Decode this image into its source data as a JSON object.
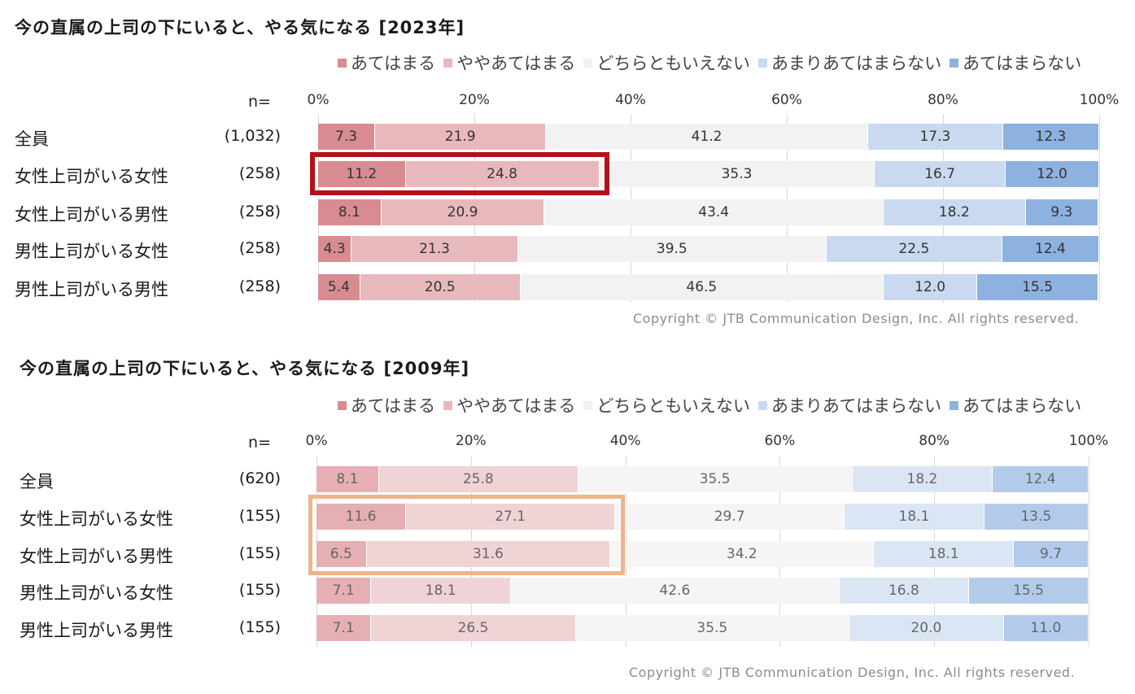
{
  "legend": {
    "categories": [
      "あてはまる",
      "ややあてはまる",
      "どちらともいえない",
      "あまりあてはまらない",
      "あてはまらない"
    ],
    "colors": [
      "#d88c91",
      "#e8b9bc",
      "#f2f2f2",
      "#c9daf0",
      "#8eb2e0"
    ],
    "colors_faded": [
      "#e6afb3",
      "#f0d3d5",
      "#f5f5f5",
      "#dbe6f5",
      "#b3cbeb"
    ]
  },
  "n_label": "n=",
  "ticks": [
    "0%",
    "20%",
    "40%",
    "60%",
    "80%",
    "100%"
  ],
  "copyright": "Copyright © JTB Communication Design, Inc. All rights reserved.",
  "chart_data": [
    {
      "type": "bar",
      "stacked": true,
      "orientation": "horizontal",
      "title": "今の直属の上司の下にいると、やる気になる [2023年]",
      "categories": [
        "全員",
        "女性上司がいる女性",
        "女性上司がいる男性",
        "男性上司がいる女性",
        "男性上司がいる男性"
      ],
      "n": [
        "(1,032)",
        "(258)",
        "(258)",
        "(258)",
        "(258)"
      ],
      "xlim": [
        0,
        100
      ],
      "series": [
        {
          "name": "あてはまる",
          "values": [
            7.3,
            11.2,
            8.1,
            4.3,
            5.4
          ]
        },
        {
          "name": "ややあてはまる",
          "values": [
            21.9,
            24.8,
            20.9,
            21.3,
            20.5
          ]
        },
        {
          "name": "どちらともいえない",
          "values": [
            41.2,
            35.3,
            43.4,
            39.5,
            46.5
          ]
        },
        {
          "name": "あまりあてはまらない",
          "values": [
            17.3,
            16.7,
            18.2,
            22.5,
            12.0
          ]
        },
        {
          "name": "あてはまらない",
          "values": [
            12.3,
            12.0,
            9.3,
            12.4,
            15.5
          ]
        }
      ],
      "value_labels": [
        [
          "7.3",
          "21.9",
          "41.2",
          "17.3",
          "12.3"
        ],
        [
          "11.2",
          "24.8",
          "35.3",
          "16.7",
          "12.0"
        ],
        [
          "8.1",
          "20.9",
          "43.4",
          "18.2",
          "9.3"
        ],
        [
          "4.3",
          "21.3",
          "39.5",
          "22.5",
          "12.4"
        ],
        [
          "5.4",
          "20.5",
          "46.5",
          "12.0",
          "15.5"
        ]
      ],
      "highlight": {
        "rows": [
          1
        ],
        "segments": [
          0,
          1
        ],
        "color": "#b3111a"
      }
    },
    {
      "type": "bar",
      "stacked": true,
      "orientation": "horizontal",
      "title": "今の直属の上司の下にいると、やる気になる [2009年]",
      "categories": [
        "全員",
        "女性上司がいる女性",
        "女性上司がいる男性",
        "男性上司がいる女性",
        "男性上司がいる男性"
      ],
      "n": [
        "(620)",
        "(155)",
        "(155)",
        "(155)",
        "(155)"
      ],
      "xlim": [
        0,
        100
      ],
      "series": [
        {
          "name": "あてはまる",
          "values": [
            8.1,
            11.6,
            6.5,
            7.1,
            7.1
          ]
        },
        {
          "name": "ややあてはまる",
          "values": [
            25.8,
            27.1,
            31.6,
            18.1,
            26.5
          ]
        },
        {
          "name": "どちらともいえない",
          "values": [
            35.5,
            29.7,
            34.2,
            42.6,
            35.5
          ]
        },
        {
          "name": "あまりあてはまらない",
          "values": [
            18.2,
            18.1,
            18.1,
            16.8,
            20.0
          ]
        },
        {
          "name": "あてはまらない",
          "values": [
            12.4,
            13.5,
            9.7,
            15.5,
            11.0
          ]
        }
      ],
      "value_labels": [
        [
          "8.1",
          "25.8",
          "35.5",
          "18.2",
          "12.4"
        ],
        [
          "11.6",
          "27.1",
          "29.7",
          "18.1",
          "13.5"
        ],
        [
          "6.5",
          "31.6",
          "34.2",
          "18.1",
          "9.7"
        ],
        [
          "7.1",
          "18.1",
          "42.6",
          "16.8",
          "15.5"
        ],
        [
          "7.1",
          "26.5",
          "35.5",
          "20.0",
          "11.0"
        ]
      ],
      "highlight": {
        "rows": [
          1,
          2
        ],
        "segments": [
          0,
          1
        ],
        "color": "#eeb48c"
      }
    }
  ]
}
